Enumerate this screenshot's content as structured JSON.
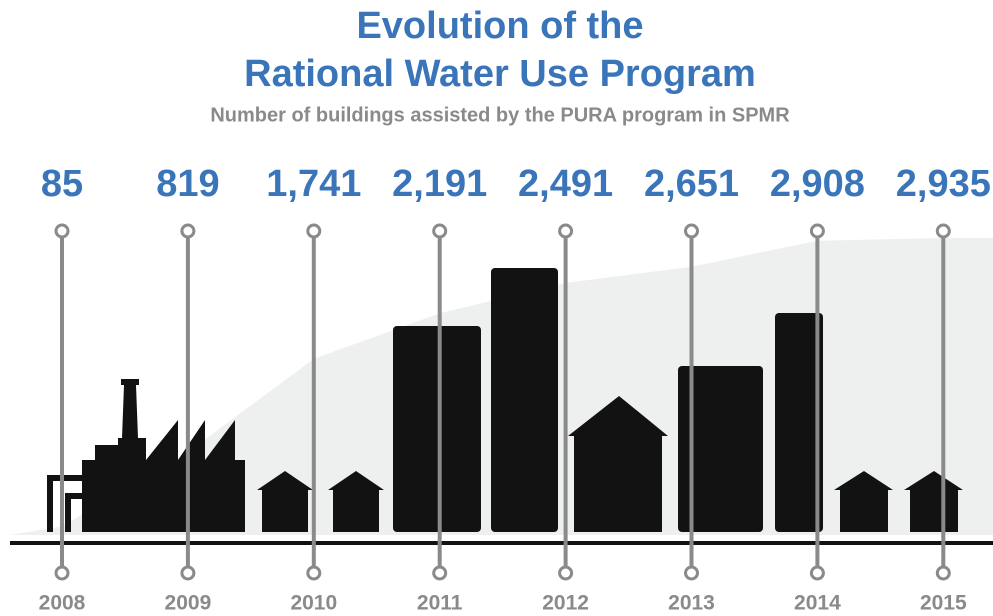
{
  "chart_data": {
    "type": "area",
    "title": [
      "Evolution of the",
      "Rational Water Use Program"
    ],
    "subtitle": "Number of buildings assisted by the PURA program in SPMR",
    "categories": [
      "2008",
      "2009",
      "2010",
      "2011",
      "2012",
      "2013",
      "2014",
      "2015"
    ],
    "values": [
      85,
      819,
      1741,
      2191,
      2491,
      2651,
      2908,
      2935
    ],
    "value_labels": [
      "85",
      "819",
      "1,741",
      "2,191",
      "2,491",
      "2,651",
      "2,908",
      "2,935"
    ],
    "color": "#eef0f0"
  }
}
